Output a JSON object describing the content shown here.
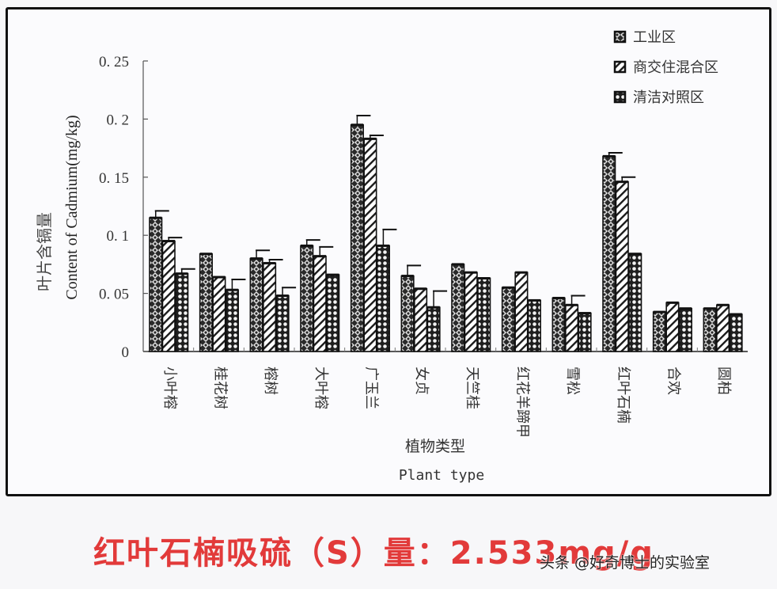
{
  "chart_data": {
    "type": "bar",
    "title": "",
    "xlabel": "植物类型",
    "xlabel_en": "Plant type",
    "ylabel": "叶片含镉量",
    "ylabel_en": "Content of Cadmium(mg/kg)",
    "ylim": [
      0,
      0.25
    ],
    "yticks": [
      "0",
      "0.05",
      "0.1",
      "0.15",
      "0.2",
      "0.25"
    ],
    "grid": false,
    "legend_position": "top-right",
    "categories": [
      "小叶榕",
      "桂花树",
      "榕树",
      "大叶榕",
      "广玉兰",
      "女贞",
      "天竺桂",
      "红花羊蹄甲",
      "雪松",
      "红叶石楠",
      "合欢",
      "圆柏"
    ],
    "series": [
      {
        "name": "工业区",
        "pattern": "crosshatch-dark",
        "values": [
          0.115,
          0.084,
          0.08,
          0.091,
          0.195,
          0.065,
          0.075,
          0.055,
          0.046,
          0.168,
          0.034,
          0.037
        ],
        "errors": [
          0.006,
          0.0,
          0.007,
          0.005,
          0.008,
          0.009,
          0.0,
          0.0,
          0.0,
          0.003,
          0.0,
          0.0
        ]
      },
      {
        "name": "商交住混合区",
        "pattern": "diagonal-lines",
        "values": [
          0.095,
          0.064,
          0.076,
          0.082,
          0.183,
          0.054,
          0.068,
          0.068,
          0.04,
          0.146,
          0.042,
          0.04
        ],
        "errors": [
          0.003,
          0.0,
          0.003,
          0.008,
          0.003,
          0.0,
          0.0,
          0.0,
          0.008,
          0.004,
          0.0,
          0.0
        ]
      },
      {
        "name": "清洁对照区",
        "pattern": "dots-checker",
        "values": [
          0.067,
          0.053,
          0.048,
          0.066,
          0.091,
          0.038,
          0.063,
          0.044,
          0.033,
          0.084,
          0.037,
          0.032
        ],
        "errors": [
          0.004,
          0.009,
          0.007,
          0.0,
          0.014,
          0.014,
          0.0,
          0.0,
          0.0,
          0.0,
          0.0,
          0.0
        ]
      }
    ]
  },
  "caption": {
    "text": "红叶石楠吸硫（S）量：2.533mg/g",
    "color": "#e23a3a"
  },
  "watermark": {
    "text": "头条 @好奇博士的实验室"
  }
}
